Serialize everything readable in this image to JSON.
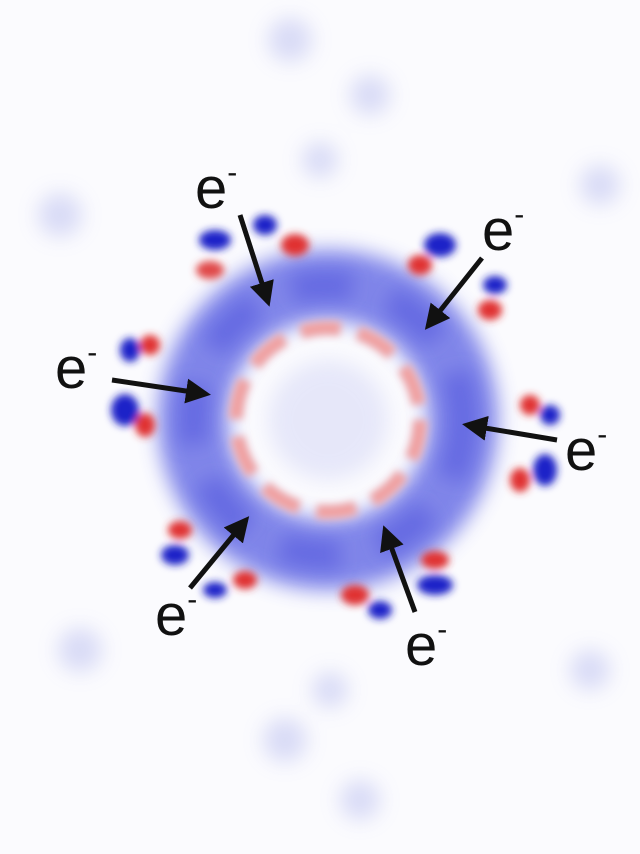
{
  "labels": [
    {
      "text": "e",
      "superscript": "-"
    },
    {
      "text": "e",
      "superscript": "-"
    },
    {
      "text": "e",
      "superscript": "-"
    },
    {
      "text": "e",
      "superscript": "-"
    },
    {
      "text": "e",
      "superscript": "-"
    },
    {
      "text": "e",
      "superscript": "-"
    }
  ]
}
